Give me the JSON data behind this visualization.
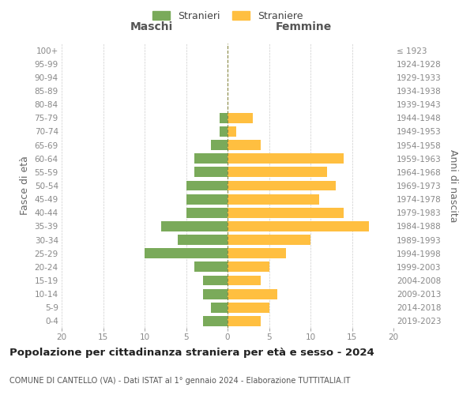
{
  "age_groups": [
    "0-4",
    "5-9",
    "10-14",
    "15-19",
    "20-24",
    "25-29",
    "30-34",
    "35-39",
    "40-44",
    "45-49",
    "50-54",
    "55-59",
    "60-64",
    "65-69",
    "70-74",
    "75-79",
    "80-84",
    "85-89",
    "90-94",
    "95-99",
    "100+"
  ],
  "birth_years": [
    "2019-2023",
    "2014-2018",
    "2009-2013",
    "2004-2008",
    "1999-2003",
    "1994-1998",
    "1989-1993",
    "1984-1988",
    "1979-1983",
    "1974-1978",
    "1969-1973",
    "1964-1968",
    "1959-1963",
    "1954-1958",
    "1949-1953",
    "1944-1948",
    "1939-1943",
    "1934-1938",
    "1929-1933",
    "1924-1928",
    "≤ 1923"
  ],
  "maschi": [
    3,
    2,
    3,
    3,
    4,
    10,
    6,
    8,
    5,
    5,
    5,
    4,
    4,
    2,
    1,
    1,
    0,
    0,
    0,
    0,
    0
  ],
  "femmine": [
    4,
    5,
    6,
    4,
    5,
    7,
    10,
    17,
    14,
    11,
    13,
    12,
    14,
    4,
    1,
    3,
    0,
    0,
    0,
    0,
    0
  ],
  "color_maschi": "#7aaa5a",
  "color_femmine": "#ffbf40",
  "xlim": 20,
  "title": "Popolazione per cittadinanza straniera per età e sesso - 2024",
  "subtitle": "COMUNE DI CANTELLO (VA) - Dati ISTAT al 1° gennaio 2024 - Elaborazione TUTTITALIA.IT",
  "ylabel_left": "Fasce di età",
  "ylabel_right": "Anni di nascita",
  "header_maschi": "Maschi",
  "header_femmine": "Femmine",
  "legend_maschi": "Stranieri",
  "legend_femmine": "Straniere",
  "bg_color": "#ffffff",
  "grid_color": "#cccccc",
  "xticks": [
    0,
    5,
    10,
    15,
    20
  ]
}
